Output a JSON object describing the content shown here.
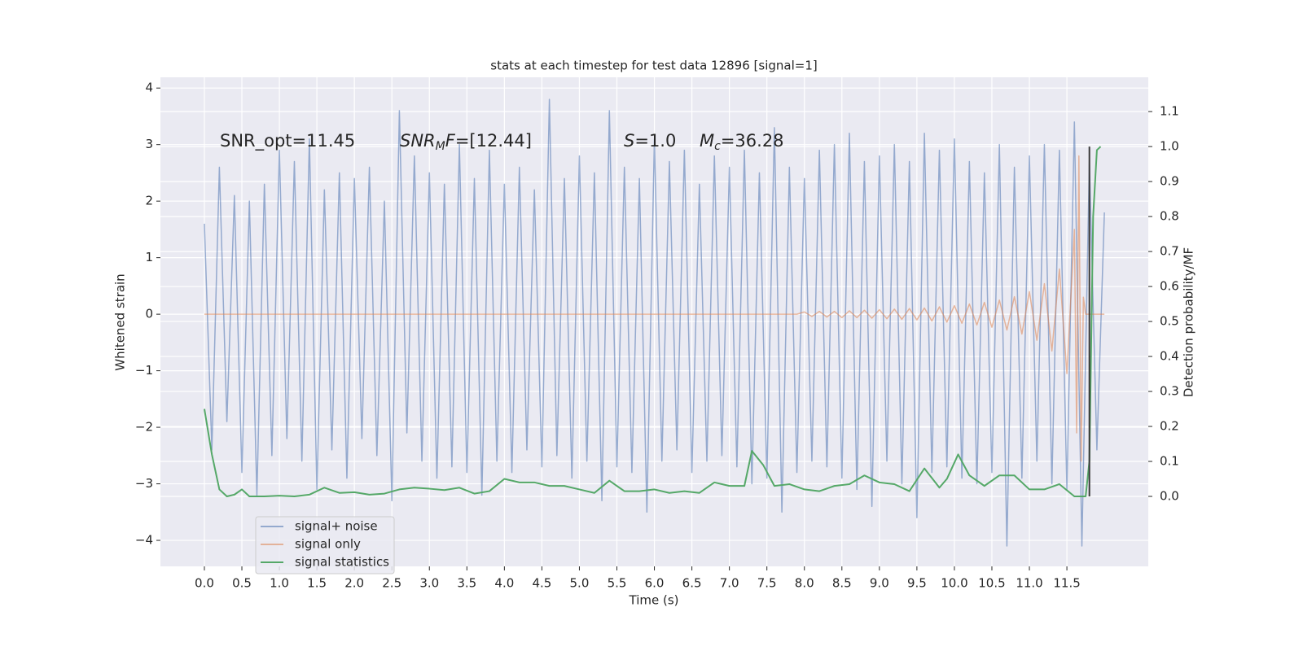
{
  "chart_data": {
    "type": "line",
    "title": "stats at each timestep for test data 12896 [signal=1]",
    "x_label": "Time (s)",
    "y_label": "Whitened strain",
    "y2_label": "Detection probability/MF",
    "annotations": [
      [
        "SNR_opt=11.45"
      ],
      [
        "SNR",
        "M",
        "F",
        "=[12.44]"
      ],
      [
        "S",
        "=1.0"
      ],
      [
        "M",
        "c",
        "=36.28"
      ]
    ],
    "grid": true,
    "legend": "lower left",
    "xlim": [
      -0.586,
      12.585
    ],
    "ylim": [
      -4.46,
      4.19
    ],
    "y2lim": [
      -0.2,
      1.198
    ],
    "xticks": [
      {
        "value": 0,
        "label": "0.0"
      },
      {
        "value": 0.5,
        "label": "0.5"
      },
      {
        "value": 1,
        "label": "1.0"
      },
      {
        "value": 1.5,
        "label": "1.5"
      },
      {
        "value": 2,
        "label": "2.0"
      },
      {
        "value": 2.5,
        "label": "2.5"
      },
      {
        "value": 3,
        "label": "3.0"
      },
      {
        "value": 3.5,
        "label": "3.5"
      },
      {
        "value": 4,
        "label": "4.0"
      },
      {
        "value": 4.5,
        "label": "4.5"
      },
      {
        "value": 5,
        "label": "5.0"
      },
      {
        "value": 5.5,
        "label": "5.5"
      },
      {
        "value": 6,
        "label": "6.0"
      },
      {
        "value": 6.5,
        "label": "6.5"
      },
      {
        "value": 7,
        "label": "7.0"
      },
      {
        "value": 7.5,
        "label": "7.5"
      },
      {
        "value": 8,
        "label": "8.0"
      },
      {
        "value": 8.5,
        "label": "8.5"
      },
      {
        "value": 9,
        "label": "9.0"
      },
      {
        "value": 9.5,
        "label": "9.5"
      },
      {
        "value": 10,
        "label": "10.0"
      },
      {
        "value": 10.5,
        "label": "10.5"
      },
      {
        "value": 11,
        "label": "11.0"
      },
      {
        "value": 11.5,
        "label": "11.5"
      }
    ],
    "yticks": [
      {
        "value": -4,
        "label": "−4"
      },
      {
        "value": -3,
        "label": "−3"
      },
      {
        "value": -2,
        "label": "−2"
      },
      {
        "value": -1,
        "label": "−1"
      },
      0,
      1,
      2,
      3,
      4
    ],
    "y2ticks": [
      {
        "value": 0,
        "label": "0.0"
      },
      {
        "value": 0.1,
        "label": "0.1"
      },
      {
        "value": 0.2,
        "label": "0.2"
      },
      {
        "value": 0.3,
        "label": "0.3"
      },
      {
        "value": 0.4,
        "label": "0.4"
      },
      {
        "value": 0.5,
        "label": "0.5"
      },
      {
        "value": 0.6,
        "label": "0.6"
      },
      {
        "value": 0.7,
        "label": "0.7"
      },
      {
        "value": 0.8,
        "label": "0.8"
      },
      {
        "value": 0.9,
        "label": "0.9"
      },
      {
        "value": 1,
        "label": "1.0"
      },
      {
        "value": 1.1,
        "label": "1.1"
      }
    ],
    "series": [
      {
        "name": "signal+ noise",
        "color": "#4c72b0",
        "x": [
          0,
          0.1,
          0.2,
          0.3,
          0.4,
          0.5,
          0.6,
          0.7,
          0.8,
          0.9,
          1,
          1.1,
          1.2,
          1.3,
          1.4,
          1.5,
          1.6,
          1.7,
          1.8,
          1.9,
          2,
          2.1,
          2.2,
          2.3,
          2.4,
          2.5,
          2.6,
          2.7,
          2.8,
          2.9,
          3,
          3.1,
          3.2,
          3.3,
          3.4,
          3.5,
          3.6,
          3.7,
          3.8,
          3.9,
          4,
          4.1,
          4.2,
          4.3,
          4.4,
          4.5,
          4.6,
          4.7,
          4.8,
          4.9,
          5,
          5.1,
          5.2,
          5.3,
          5.4,
          5.5,
          5.6,
          5.7,
          5.8,
          5.9,
          6,
          6.1,
          6.2,
          6.3,
          6.4,
          6.5,
          6.6,
          6.7,
          6.8,
          6.9,
          7,
          7.1,
          7.2,
          7.3,
          7.4,
          7.5,
          7.6,
          7.7,
          7.8,
          7.9,
          8,
          8.1,
          8.2,
          8.3,
          8.4,
          8.5,
          8.6,
          8.7,
          8.8,
          8.9,
          9,
          9.1,
          9.2,
          9.3,
          9.4,
          9.5,
          9.6,
          9.7,
          9.8,
          9.9,
          10,
          10.1,
          10.2,
          10.3,
          10.4,
          10.5,
          10.6,
          10.7,
          10.8,
          10.9,
          11,
          11.1,
          11.2,
          11.3,
          11.4,
          11.5,
          11.6,
          11.7,
          11.8,
          11.9,
          12
        ],
        "values": [
          1.6,
          -2.4,
          2.6,
          -1.9,
          2.1,
          -2.8,
          2.0,
          -3.2,
          2.3,
          -2.5,
          2.9,
          -2.2,
          2.7,
          -2.6,
          3.1,
          -3.1,
          2.2,
          -2.4,
          2.5,
          -2.9,
          2.4,
          -2.2,
          2.6,
          -2.5,
          2.0,
          -3.3,
          3.6,
          -2.1,
          2.8,
          -2.6,
          2.5,
          -2.9,
          2.3,
          -2.7,
          3.0,
          -2.8,
          2.4,
          -3.2,
          2.9,
          -2.6,
          2.3,
          -2.8,
          2.6,
          -2.4,
          2.2,
          -2.7,
          3.8,
          -2.5,
          2.4,
          -2.9,
          2.8,
          -2.6,
          2.5,
          -3.3,
          3.6,
          -2.7,
          2.6,
          -2.8,
          2.4,
          -3.5,
          3.1,
          -2.6,
          2.7,
          -2.4,
          2.9,
          -2.8,
          2.3,
          -2.6,
          2.8,
          -2.5,
          2.6,
          -2.7,
          2.9,
          -3.0,
          2.5,
          -2.9,
          3.3,
          -3.5,
          2.6,
          -2.8,
          2.4,
          -2.6,
          2.9,
          -2.7,
          3.0,
          -2.9,
          3.2,
          -3.1,
          2.7,
          -3.4,
          2.8,
          -2.6,
          3.0,
          -3.0,
          2.7,
          -3.6,
          3.2,
          -2.8,
          2.9,
          -2.7,
          3.1,
          -2.9,
          2.7,
          -3.0,
          2.5,
          -2.8,
          3.0,
          -4.1,
          2.6,
          -2.9,
          2.8,
          -2.6,
          3.0,
          -3.0,
          2.9,
          -3.1,
          3.4,
          -4.1,
          2.7,
          -2.4,
          1.8
        ]
      },
      {
        "name": "signal only",
        "color": "#dd8452",
        "x": [
          0,
          7.9,
          8,
          8.1,
          8.2,
          8.3,
          8.4,
          8.5,
          8.6,
          8.7,
          8.8,
          8.9,
          9,
          9.1,
          9.2,
          9.3,
          9.4,
          9.5,
          9.6,
          9.7,
          9.8,
          9.9,
          10,
          10.1,
          10.2,
          10.3,
          10.4,
          10.5,
          10.6,
          10.7,
          10.8,
          10.9,
          11,
          11.1,
          11.2,
          11.3,
          11.4,
          11.5,
          11.6,
          11.63,
          11.66,
          11.69,
          11.72,
          11.75,
          12
        ],
        "values": [
          0,
          0,
          0.04,
          -0.04,
          0.05,
          -0.05,
          0.05,
          -0.06,
          0.06,
          -0.06,
          0.07,
          -0.07,
          0.08,
          -0.08,
          0.09,
          -0.09,
          0.1,
          -0.1,
          0.11,
          -0.12,
          0.13,
          -0.14,
          0.15,
          -0.16,
          0.18,
          -0.19,
          0.21,
          -0.23,
          0.25,
          -0.28,
          0.31,
          -0.35,
          0.4,
          -0.46,
          0.54,
          -0.65,
          0.8,
          -1.05,
          1.5,
          -2.1,
          2.8,
          -2.6,
          0.3,
          0,
          0
        ]
      },
      {
        "name": "signal statistics",
        "color": "#55a868",
        "axis": "y2",
        "x": [
          0,
          0.1,
          0.2,
          0.3,
          0.4,
          0.5,
          0.6,
          0.8,
          1,
          1.2,
          1.4,
          1.6,
          1.8,
          2,
          2.2,
          2.4,
          2.6,
          2.8,
          3,
          3.2,
          3.4,
          3.6,
          3.8,
          4,
          4.2,
          4.4,
          4.6,
          4.8,
          5,
          5.2,
          5.4,
          5.6,
          5.8,
          6,
          6.2,
          6.4,
          6.6,
          6.8,
          7,
          7.2,
          7.3,
          7.45,
          7.6,
          7.8,
          8,
          8.2,
          8.4,
          8.6,
          8.8,
          9,
          9.2,
          9.4,
          9.6,
          9.8,
          9.9,
          10.05,
          10.2,
          10.4,
          10.6,
          10.8,
          11,
          11.2,
          11.4,
          11.6,
          11.75,
          11.8,
          11.85,
          11.9,
          11.95
        ],
        "values": [
          0.25,
          0.12,
          0.02,
          0,
          0.005,
          0.02,
          0,
          0,
          0.002,
          0,
          0.005,
          0.025,
          0.01,
          0.012,
          0.005,
          0.008,
          0.02,
          0.025,
          0.022,
          0.018,
          0.025,
          0.008,
          0.015,
          0.05,
          0.04,
          0.04,
          0.03,
          0.03,
          0.02,
          0.01,
          0.045,
          0.015,
          0.015,
          0.02,
          0.01,
          0.015,
          0.01,
          0.04,
          0.03,
          0.03,
          0.13,
          0.09,
          0.03,
          0.035,
          0.02,
          0.015,
          0.03,
          0.035,
          0.06,
          0.04,
          0.035,
          0.015,
          0.08,
          0.025,
          0.05,
          0.12,
          0.06,
          0.03,
          0.06,
          0.06,
          0.02,
          0.02,
          0.035,
          0,
          0,
          0.1,
          0.8,
          0.99,
          1
        ]
      }
    ],
    "vlines": [
      {
        "x": 11.8,
        "ymin": 0,
        "ymax": 1,
        "axis": "y2",
        "color": "#3a3a3a"
      }
    ]
  }
}
